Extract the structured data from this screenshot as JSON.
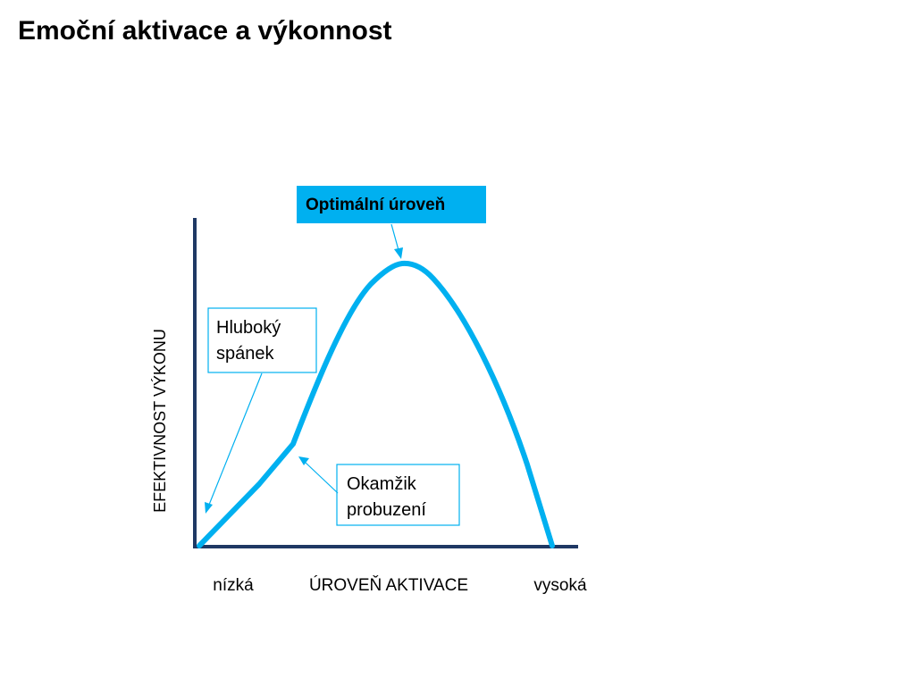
{
  "title": "Emoční aktivace a výkonnost",
  "diagram": {
    "y_axis_label": "EFEKTIVNOST VÝKONU",
    "x_axis_label": "ÚROVEŇ AKTIVACE",
    "x_low_label": "nízká",
    "x_high_label": "vysoká",
    "callouts": {
      "optimal": "Optimální úroveň",
      "deep_sleep_line1": "Hluboký",
      "deep_sleep_line2": "spánek",
      "awakening_line1": "Okamžik",
      "awakening_line2": "probuzení"
    },
    "colors": {
      "axis": "#1f3864",
      "curve": "#00b0f0",
      "optimal_box_fill": "#00b0f0",
      "callout_border": "#00b0f0",
      "pointer": "#00b0f0"
    }
  }
}
